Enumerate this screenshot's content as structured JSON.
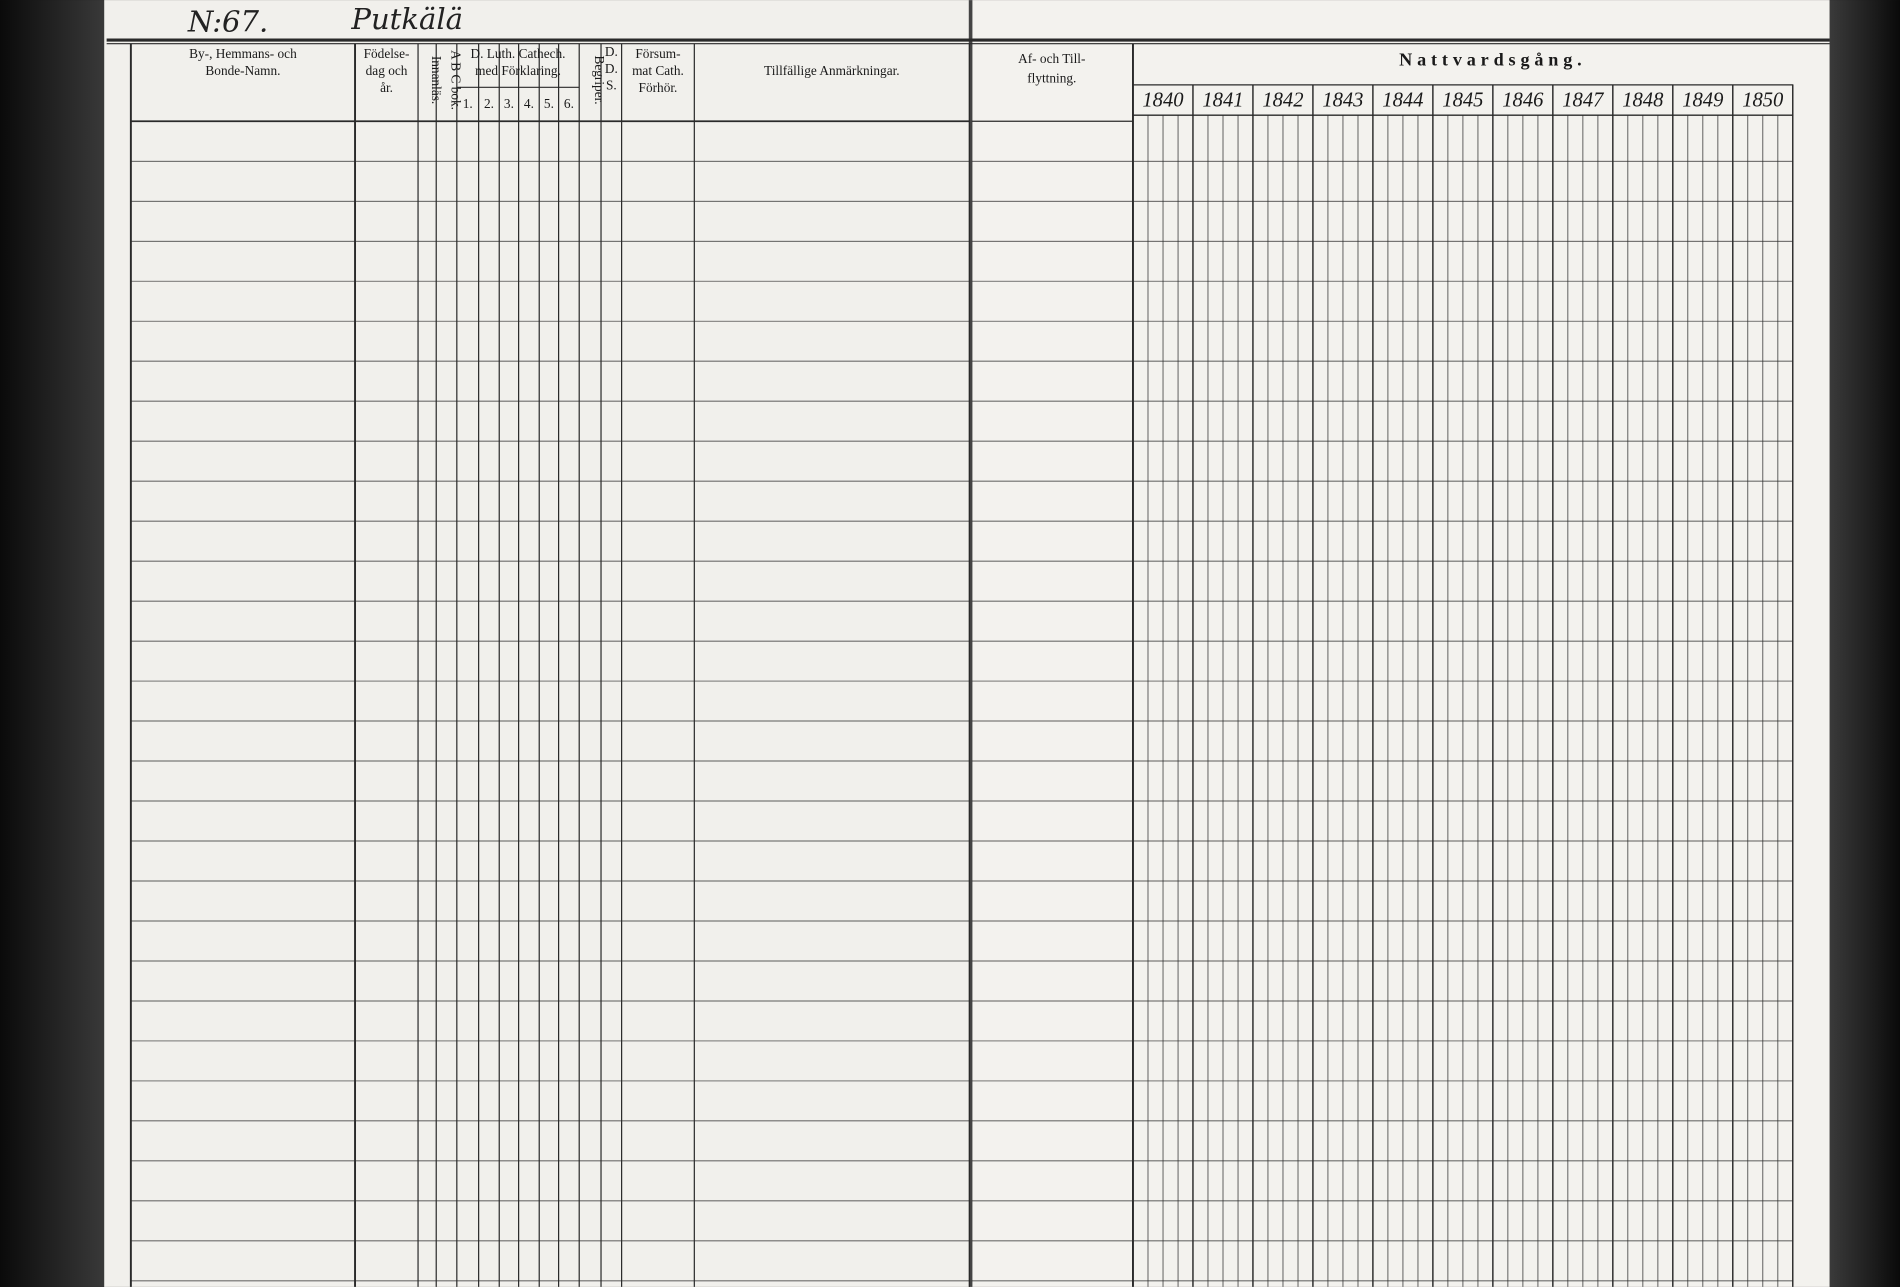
{
  "header": {
    "number": "N:67.",
    "village": "Putkälä"
  },
  "left_page": {
    "columns": [
      {
        "lines": [
          "By-, Hemmans- och",
          "Bonde-Namn."
        ]
      },
      {
        "lines": [
          "Födelse-",
          "dag och",
          "år."
        ]
      },
      {
        "lines": [
          "Innanläs."
        ]
      },
      {
        "lines": [
          "A B C bok."
        ]
      },
      {
        "lines": [
          "D. Luth. Cathech.",
          "med Förklaring."
        ]
      },
      {
        "lines": [
          "Begriper."
        ]
      },
      {
        "lines": [
          "D.",
          "D.",
          "S."
        ]
      },
      {
        "lines": [
          "Försum-",
          "mat Cath.",
          "Förhör."
        ]
      },
      {
        "lines": [
          "Tillfällige Anmärkningar."
        ]
      }
    ],
    "catechism_sections": [
      "1.",
      "2.",
      "3.",
      "4.",
      "5.",
      "6."
    ]
  },
  "right_page": {
    "migration_header": [
      "Af- och Till-",
      "flyttning."
    ],
    "communion_header": "Nattvardsgång.",
    "years": [
      "1840",
      "1841",
      "1842",
      "1843",
      "1844",
      "1845",
      "1846",
      "1847",
      "1848",
      "1849",
      "1850"
    ]
  }
}
